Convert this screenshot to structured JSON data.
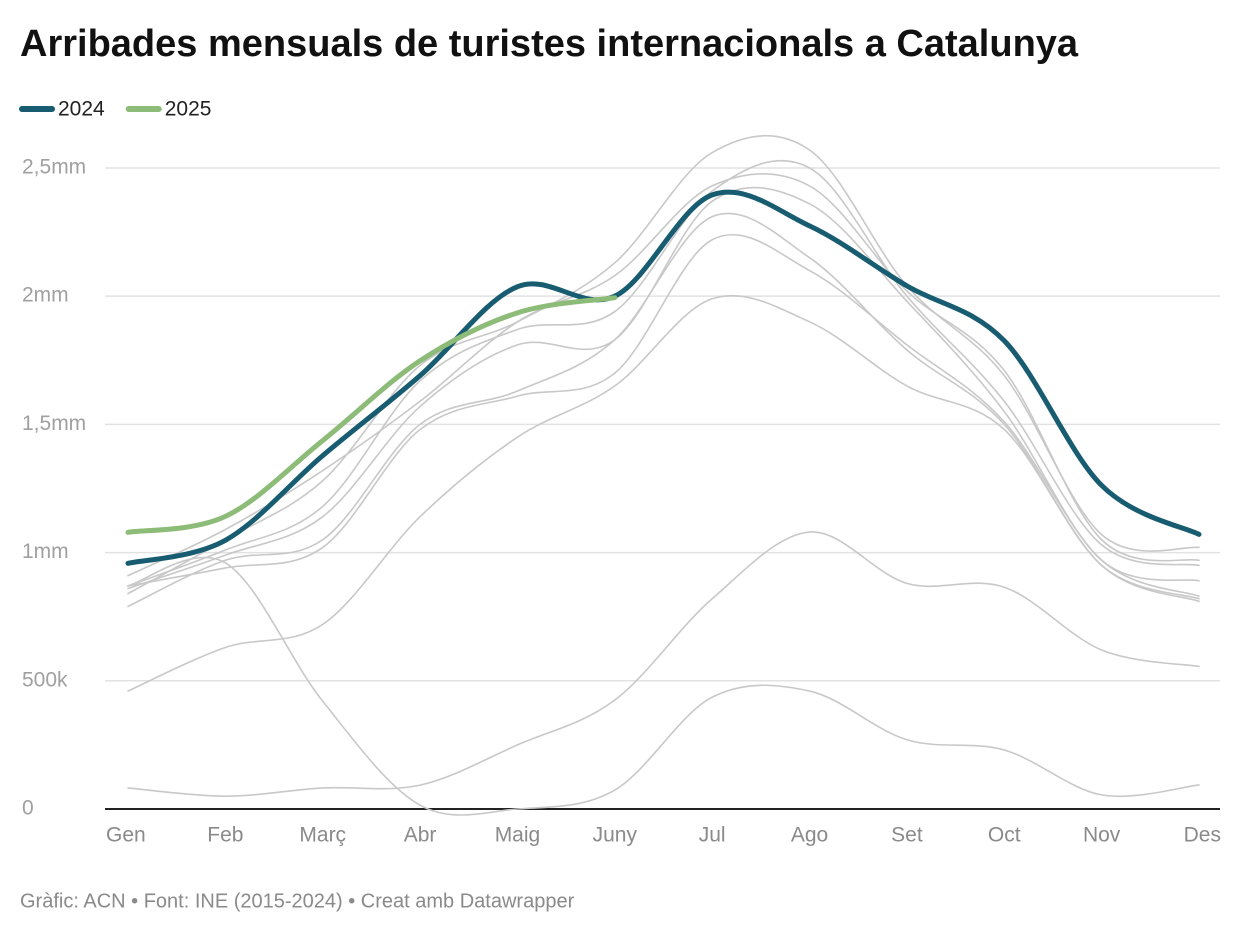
{
  "chart_data": {
    "type": "line",
    "title": "Arribades mensuals de turistes internacionals a Catalunya",
    "source": "Gràfic: ACN • Font: INE (2015-2024) • Creat amb Datawrapper",
    "categories": [
      "Gen",
      "Feb",
      "Març",
      "Abr",
      "Maig",
      "Juny",
      "Jul",
      "Ago",
      "Set",
      "Oct",
      "Nov",
      "Des"
    ],
    "ylim": [
      0,
      2570000
    ],
    "yticks": [
      0,
      {
        "value": 500000,
        "label": "500k"
      },
      {
        "value": 1000000,
        "label": "1mm"
      },
      {
        "value": 1500000,
        "label": "1,5mm"
      },
      {
        "value": 2000000,
        "label": "2mm"
      },
      {
        "value": 2500000,
        "label": "2,5mm"
      }
    ],
    "grid": true,
    "legend": "top-left",
    "series": [
      {
        "color": "#c8c8c8",
        "values": [
          870000,
          940000,
          1020000,
          1480000,
          1610000,
          1700000,
          2220000,
          2100000,
          1810000,
          1510000,
          970000,
          830000
        ]
      },
      {
        "color": "#c8c8c8",
        "values": [
          790000,
          970000,
          1050000,
          1500000,
          1630000,
          1830000,
          2310000,
          2150000,
          1790000,
          1500000,
          950000,
          810000
        ]
      },
      {
        "color": "#c8c8c8",
        "values": [
          860000,
          990000,
          1140000,
          1570000,
          1810000,
          1830000,
          2370000,
          2360000,
          1980000,
          1550000,
          970000,
          890000
        ]
      },
      {
        "color": "#c8c8c8",
        "values": [
          870000,
          1010000,
          1180000,
          1670000,
          1870000,
          1940000,
          2410000,
          2500000,
          2000000,
          1590000,
          1030000,
          950000
        ]
      },
      {
        "color": "#c8c8c8",
        "values": [
          840000,
          1050000,
          1280000,
          1730000,
          1900000,
          2130000,
          2560000,
          2570000,
          2040000,
          1690000,
          1070000,
          1020000
        ]
      },
      {
        "color": "#c8c8c8",
        "values": [
          870000,
          960000,
          420000,
          15000,
          0,
          74000,
          436000,
          460000,
          270000,
          230000,
          55000,
          94000
        ]
      },
      {
        "color": "#c8c8c8",
        "values": [
          82000,
          50000,
          82000,
          93000,
          250000,
          425000,
          820000,
          1080000,
          880000,
          865000,
          620000,
          556000
        ]
      },
      {
        "color": "#c8c8c8",
        "values": [
          460000,
          630000,
          720000,
          1140000,
          1450000,
          1650000,
          1990000,
          1900000,
          1650000,
          1480000,
          950000,
          820000
        ]
      },
      {
        "color": "#c8c8c8",
        "values": [
          910000,
          1090000,
          1320000,
          1590000,
          1900000,
          2080000,
          2430000,
          2430000,
          2020000,
          1710000,
          1050000,
          970000
        ]
      },
      {
        "name": "2024",
        "color": "#175c70",
        "values": [
          958000,
          1048000,
          1378000,
          1690000,
          2037000,
          2000000,
          2395000,
          2274000,
          2040000,
          1826000,
          1262000,
          1071000
        ]
      },
      {
        "name": "2025",
        "color": "#8dbb78",
        "values": [
          1079000,
          1141000,
          1437000,
          1748000,
          1935000,
          1994000,
          null,
          null,
          null,
          null,
          null,
          null
        ]
      }
    ]
  }
}
